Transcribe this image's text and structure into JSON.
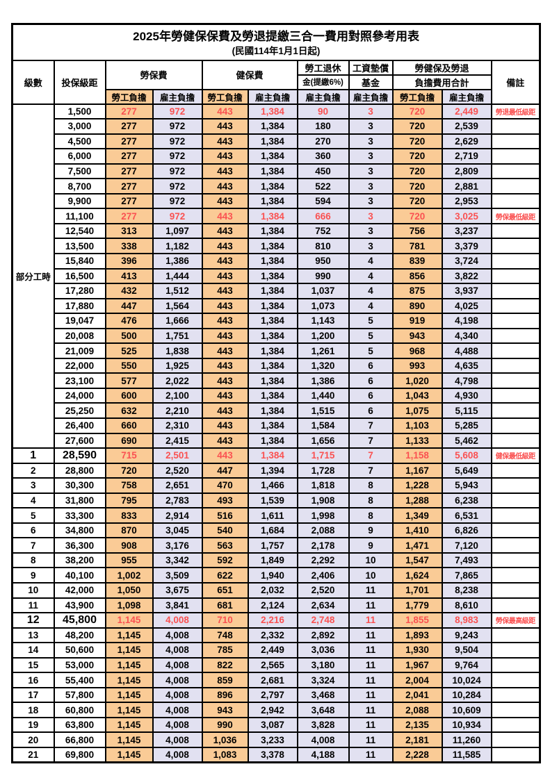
{
  "table": {
    "title": "2025年勞健保保費及勞退提繳三合一費用對照參考用表",
    "subtitle": "(民國114年1月1日起)",
    "header": {
      "level": "級數",
      "bracket": "投保級距",
      "labor_fee": "勞保費",
      "health_fee": "健保費",
      "pension_line1": "勞工退休",
      "pension_line2": "金(提繳6%)",
      "wage_fund_line1": "工資墊償",
      "wage_fund_line2": "基金",
      "total_line1": "勞健保及勞退",
      "total_line2": "負擔費用合計",
      "employee_share": "勞工負擔",
      "employer_share": "雇主負擔",
      "remark": "備註"
    },
    "part_time_label": "部分工時",
    "part_time_rowspan": 23,
    "colors": {
      "employee_column_bg": "#FACB96",
      "employer_column_bg": "#E2E1F1",
      "highlight_red": "#FA5151",
      "border": "#000000"
    },
    "rows": [
      {
        "bracket": "1,500",
        "v": [
          "277",
          "972",
          "443",
          "1,384",
          "90",
          "3",
          "720",
          "2,449"
        ],
        "remark": "勞退最低級距",
        "red": true
      },
      {
        "bracket": "3,000",
        "v": [
          "277",
          "972",
          "443",
          "1,384",
          "180",
          "3",
          "720",
          "2,539"
        ]
      },
      {
        "bracket": "4,500",
        "v": [
          "277",
          "972",
          "443",
          "1,384",
          "270",
          "3",
          "720",
          "2,629"
        ]
      },
      {
        "bracket": "6,000",
        "v": [
          "277",
          "972",
          "443",
          "1,384",
          "360",
          "3",
          "720",
          "2,719"
        ]
      },
      {
        "bracket": "7,500",
        "v": [
          "277",
          "972",
          "443",
          "1,384",
          "450",
          "3",
          "720",
          "2,809"
        ]
      },
      {
        "bracket": "8,700",
        "v": [
          "277",
          "972",
          "443",
          "1,384",
          "522",
          "3",
          "720",
          "2,881"
        ]
      },
      {
        "bracket": "9,900",
        "v": [
          "277",
          "972",
          "443",
          "1,384",
          "594",
          "3",
          "720",
          "2,953"
        ]
      },
      {
        "bracket": "11,100",
        "v": [
          "277",
          "972",
          "443",
          "1,384",
          "666",
          "3",
          "720",
          "3,025"
        ],
        "remark": "勞保最低級距",
        "red": true
      },
      {
        "bracket": "12,540",
        "v": [
          "313",
          "1,097",
          "443",
          "1,384",
          "752",
          "3",
          "756",
          "3,237"
        ]
      },
      {
        "bracket": "13,500",
        "v": [
          "338",
          "1,182",
          "443",
          "1,384",
          "810",
          "3",
          "781",
          "3,379"
        ]
      },
      {
        "bracket": "15,840",
        "v": [
          "396",
          "1,386",
          "443",
          "1,384",
          "950",
          "4",
          "839",
          "3,724"
        ]
      },
      {
        "bracket": "16,500",
        "v": [
          "413",
          "1,444",
          "443",
          "1,384",
          "990",
          "4",
          "856",
          "3,822"
        ]
      },
      {
        "bracket": "17,280",
        "v": [
          "432",
          "1,512",
          "443",
          "1,384",
          "1,037",
          "4",
          "875",
          "3,937"
        ]
      },
      {
        "bracket": "17,880",
        "v": [
          "447",
          "1,564",
          "443",
          "1,384",
          "1,073",
          "4",
          "890",
          "4,025"
        ]
      },
      {
        "bracket": "19,047",
        "v": [
          "476",
          "1,666",
          "443",
          "1,384",
          "1,143",
          "5",
          "919",
          "4,198"
        ]
      },
      {
        "bracket": "20,008",
        "v": [
          "500",
          "1,751",
          "443",
          "1,384",
          "1,200",
          "5",
          "943",
          "4,340"
        ]
      },
      {
        "bracket": "21,009",
        "v": [
          "525",
          "1,838",
          "443",
          "1,384",
          "1,261",
          "5",
          "968",
          "4,488"
        ]
      },
      {
        "bracket": "22,000",
        "v": [
          "550",
          "1,925",
          "443",
          "1,384",
          "1,320",
          "6",
          "993",
          "4,635"
        ]
      },
      {
        "bracket": "23,100",
        "v": [
          "577",
          "2,022",
          "443",
          "1,384",
          "1,386",
          "6",
          "1,020",
          "4,798"
        ]
      },
      {
        "bracket": "24,000",
        "v": [
          "600",
          "2,100",
          "443",
          "1,384",
          "1,440",
          "6",
          "1,043",
          "4,930"
        ]
      },
      {
        "bracket": "25,250",
        "v": [
          "632",
          "2,210",
          "443",
          "1,384",
          "1,515",
          "6",
          "1,075",
          "5,115"
        ]
      },
      {
        "bracket": "26,400",
        "v": [
          "660",
          "2,310",
          "443",
          "1,384",
          "1,584",
          "7",
          "1,103",
          "5,285"
        ]
      },
      {
        "bracket": "27,600",
        "v": [
          "690",
          "2,415",
          "443",
          "1,384",
          "1,656",
          "7",
          "1,133",
          "5,462"
        ]
      },
      {
        "level": "1",
        "bracket": "28,590",
        "v": [
          "715",
          "2,501",
          "443",
          "1,384",
          "1,715",
          "7",
          "1,158",
          "5,608"
        ],
        "remark": "健保最低級距",
        "red": true,
        "emph": true
      },
      {
        "level": "2",
        "bracket": "28,800",
        "v": [
          "720",
          "2,520",
          "447",
          "1,394",
          "1,728",
          "7",
          "1,167",
          "5,649"
        ]
      },
      {
        "level": "3",
        "bracket": "30,300",
        "v": [
          "758",
          "2,651",
          "470",
          "1,466",
          "1,818",
          "8",
          "1,228",
          "5,943"
        ]
      },
      {
        "level": "4",
        "bracket": "31,800",
        "v": [
          "795",
          "2,783",
          "493",
          "1,539",
          "1,908",
          "8",
          "1,288",
          "6,238"
        ]
      },
      {
        "level": "5",
        "bracket": "33,300",
        "v": [
          "833",
          "2,914",
          "516",
          "1,611",
          "1,998",
          "8",
          "1,349",
          "6,531"
        ]
      },
      {
        "level": "6",
        "bracket": "34,800",
        "v": [
          "870",
          "3,045",
          "540",
          "1,684",
          "2,088",
          "9",
          "1,410",
          "6,826"
        ]
      },
      {
        "level": "7",
        "bracket": "36,300",
        "v": [
          "908",
          "3,176",
          "563",
          "1,757",
          "2,178",
          "9",
          "1,471",
          "7,120"
        ]
      },
      {
        "level": "8",
        "bracket": "38,200",
        "v": [
          "955",
          "3,342",
          "592",
          "1,849",
          "2,292",
          "10",
          "1,547",
          "7,493"
        ]
      },
      {
        "level": "9",
        "bracket": "40,100",
        "v": [
          "1,002",
          "3,509",
          "622",
          "1,940",
          "2,406",
          "10",
          "1,624",
          "7,865"
        ]
      },
      {
        "level": "10",
        "bracket": "42,000",
        "v": [
          "1,050",
          "3,675",
          "651",
          "2,032",
          "2,520",
          "11",
          "1,701",
          "8,238"
        ]
      },
      {
        "level": "11",
        "bracket": "43,900",
        "v": [
          "1,098",
          "3,841",
          "681",
          "2,124",
          "2,634",
          "11",
          "1,779",
          "8,610"
        ]
      },
      {
        "level": "12",
        "bracket": "45,800",
        "v": [
          "1,145",
          "4,008",
          "710",
          "2,216",
          "2,748",
          "11",
          "1,855",
          "8,983"
        ],
        "remark": "勞保最高級距",
        "red": true,
        "emph": true
      },
      {
        "level": "13",
        "bracket": "48,200",
        "v": [
          "1,145",
          "4,008",
          "748",
          "2,332",
          "2,892",
          "11",
          "1,893",
          "9,243"
        ]
      },
      {
        "level": "14",
        "bracket": "50,600",
        "v": [
          "1,145",
          "4,008",
          "785",
          "2,449",
          "3,036",
          "11",
          "1,930",
          "9,504"
        ]
      },
      {
        "level": "15",
        "bracket": "53,000",
        "v": [
          "1,145",
          "4,008",
          "822",
          "2,565",
          "3,180",
          "11",
          "1,967",
          "9,764"
        ]
      },
      {
        "level": "16",
        "bracket": "55,400",
        "v": [
          "1,145",
          "4,008",
          "859",
          "2,681",
          "3,324",
          "11",
          "2,004",
          "10,024"
        ]
      },
      {
        "level": "17",
        "bracket": "57,800",
        "v": [
          "1,145",
          "4,008",
          "896",
          "2,797",
          "3,468",
          "11",
          "2,041",
          "10,284"
        ]
      },
      {
        "level": "18",
        "bracket": "60,800",
        "v": [
          "1,145",
          "4,008",
          "943",
          "2,942",
          "3,648",
          "11",
          "2,088",
          "10,609"
        ]
      },
      {
        "level": "19",
        "bracket": "63,800",
        "v": [
          "1,145",
          "4,008",
          "990",
          "3,087",
          "3,828",
          "11",
          "2,135",
          "10,934"
        ]
      },
      {
        "level": "20",
        "bracket": "66,800",
        "v": [
          "1,145",
          "4,008",
          "1,036",
          "3,233",
          "4,008",
          "11",
          "2,181",
          "11,260"
        ]
      },
      {
        "level": "21",
        "bracket": "69,800",
        "v": [
          "1,145",
          "4,008",
          "1,083",
          "3,378",
          "4,188",
          "11",
          "2,228",
          "11,585"
        ]
      }
    ]
  }
}
